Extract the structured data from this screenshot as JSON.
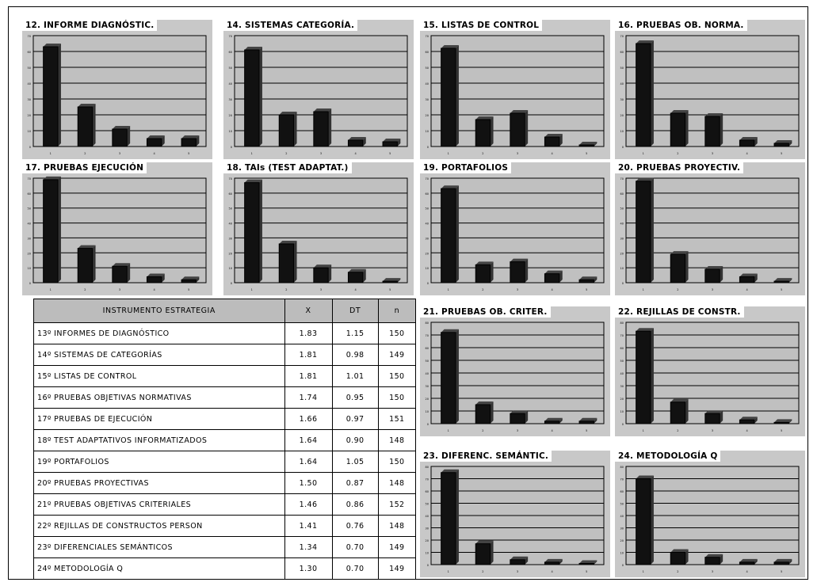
{
  "chart_data": [
    {
      "type": "bar",
      "title": "12. INFORME DIAGNÓSTIC.",
      "categories": [
        "1",
        "2",
        "3",
        "4",
        "5"
      ],
      "values": [
        63,
        25,
        11,
        5,
        5
      ],
      "ylim": [
        0,
        70
      ]
    },
    {
      "type": "bar",
      "title": "14. SISTEMAS CATEGORÍA.",
      "categories": [
        "1",
        "2",
        "3",
        "4",
        "5"
      ],
      "values": [
        61,
        20,
        22,
        4,
        3
      ],
      "ylim": [
        0,
        70
      ]
    },
    {
      "type": "bar",
      "title": "15. LISTAS DE CONTROL",
      "categories": [
        "1",
        "2",
        "3",
        "4",
        "5"
      ],
      "values": [
        62,
        17,
        21,
        6,
        1
      ],
      "ylim": [
        0,
        70
      ]
    },
    {
      "type": "bar",
      "title": "16. PRUEBAS OB. NORMA.",
      "categories": [
        "1",
        "2",
        "3",
        "4",
        "5"
      ],
      "values": [
        65,
        21,
        19,
        4,
        2
      ],
      "ylim": [
        0,
        70
      ]
    },
    {
      "type": "bar",
      "title": "17. PRUEBAS EJECUCIÓN",
      "categories": [
        "1",
        "2",
        "3",
        "4",
        "5"
      ],
      "values": [
        69,
        23,
        11,
        4,
        2
      ],
      "ylim": [
        0,
        70
      ]
    },
    {
      "type": "bar",
      "title": "18. TAIs (TEST ADAPTAT.)",
      "categories": [
        "1",
        "2",
        "3",
        "4",
        "5"
      ],
      "values": [
        67,
        26,
        10,
        7,
        1
      ],
      "ylim": [
        0,
        70
      ]
    },
    {
      "type": "bar",
      "title": "19. PORTAFOLIOS",
      "categories": [
        "1",
        "2",
        "3",
        "4",
        "5"
      ],
      "values": [
        63,
        12,
        14,
        6,
        2
      ],
      "ylim": [
        0,
        70
      ]
    },
    {
      "type": "bar",
      "title": "20. PRUEBAS PROYECTIV.",
      "categories": [
        "1",
        "2",
        "3",
        "4",
        "5"
      ],
      "values": [
        68,
        19,
        9,
        4,
        1
      ],
      "ylim": [
        0,
        70
      ]
    },
    {
      "type": "bar",
      "title": "21. PRUEBAS OB. CRITER.",
      "categories": [
        "1",
        "2",
        "3",
        "4",
        "5"
      ],
      "values": [
        72,
        15,
        8,
        2,
        2
      ],
      "ylim": [
        0,
        80
      ]
    },
    {
      "type": "bar",
      "title": "22. REJILLAS DE CONSTR.",
      "categories": [
        "1",
        "2",
        "3",
        "4",
        "5"
      ],
      "values": [
        73,
        17,
        8,
        3,
        1
      ],
      "ylim": [
        0,
        80
      ]
    },
    {
      "type": "bar",
      "title": "23. DIFERENC. SEMÁNTIC.",
      "categories": [
        "1",
        "2",
        "3",
        "4",
        "5"
      ],
      "values": [
        75,
        17,
        4,
        2,
        1
      ],
      "ylim": [
        0,
        80
      ]
    },
    {
      "type": "bar",
      "title": "24. METODOLOGÍA Q",
      "categories": [
        "1",
        "2",
        "3",
        "4",
        "5"
      ],
      "values": [
        70,
        10,
        6,
        2,
        2
      ],
      "ylim": [
        0,
        80
      ]
    },
    {
      "type": "table",
      "columns": [
        "INSTRUMENTO ESTRATEGIA",
        "X",
        "DT",
        "n"
      ],
      "rows": [
        [
          "13º INFORMES DE DIAGNÓSTICO",
          "1.83",
          "1.15",
          "150"
        ],
        [
          "14º SISTEMAS DE CATEGORÍAS",
          "1.81",
          "0.98",
          "149"
        ],
        [
          "15º LISTAS DE CONTROL",
          "1.81",
          "1.01",
          "150"
        ],
        [
          "16º PRUEBAS OBJETIVAS NORMATIVAS",
          "1.74",
          "0.95",
          "150"
        ],
        [
          "17º PRUEBAS DE EJECUCIÓN",
          "1.66",
          "0.97",
          "151"
        ],
        [
          "18º TEST ADAPTATIVOS INFORMATIZADOS",
          "1.64",
          "0.90",
          "148"
        ],
        [
          "19º PORTAFOLIOS",
          "1.64",
          "1.05",
          "150"
        ],
        [
          "20º PRUEBAS PROYECTIVAS",
          "1.50",
          "0.87",
          "148"
        ],
        [
          "21º PRUEBAS OBJETIVAS CRITERIALES",
          "1.46",
          "0.86",
          "152"
        ],
        [
          "22º REJILLAS DE CONSTRUCTOS PERSON",
          "1.41",
          "0.76",
          "148"
        ],
        [
          "23º DIFERENCIALES SEMÁNTICOS",
          "1.34",
          "0.70",
          "149"
        ],
        [
          "24º METODOLOGÍA Q",
          "1.30",
          "0.70",
          "149"
        ]
      ]
    }
  ]
}
